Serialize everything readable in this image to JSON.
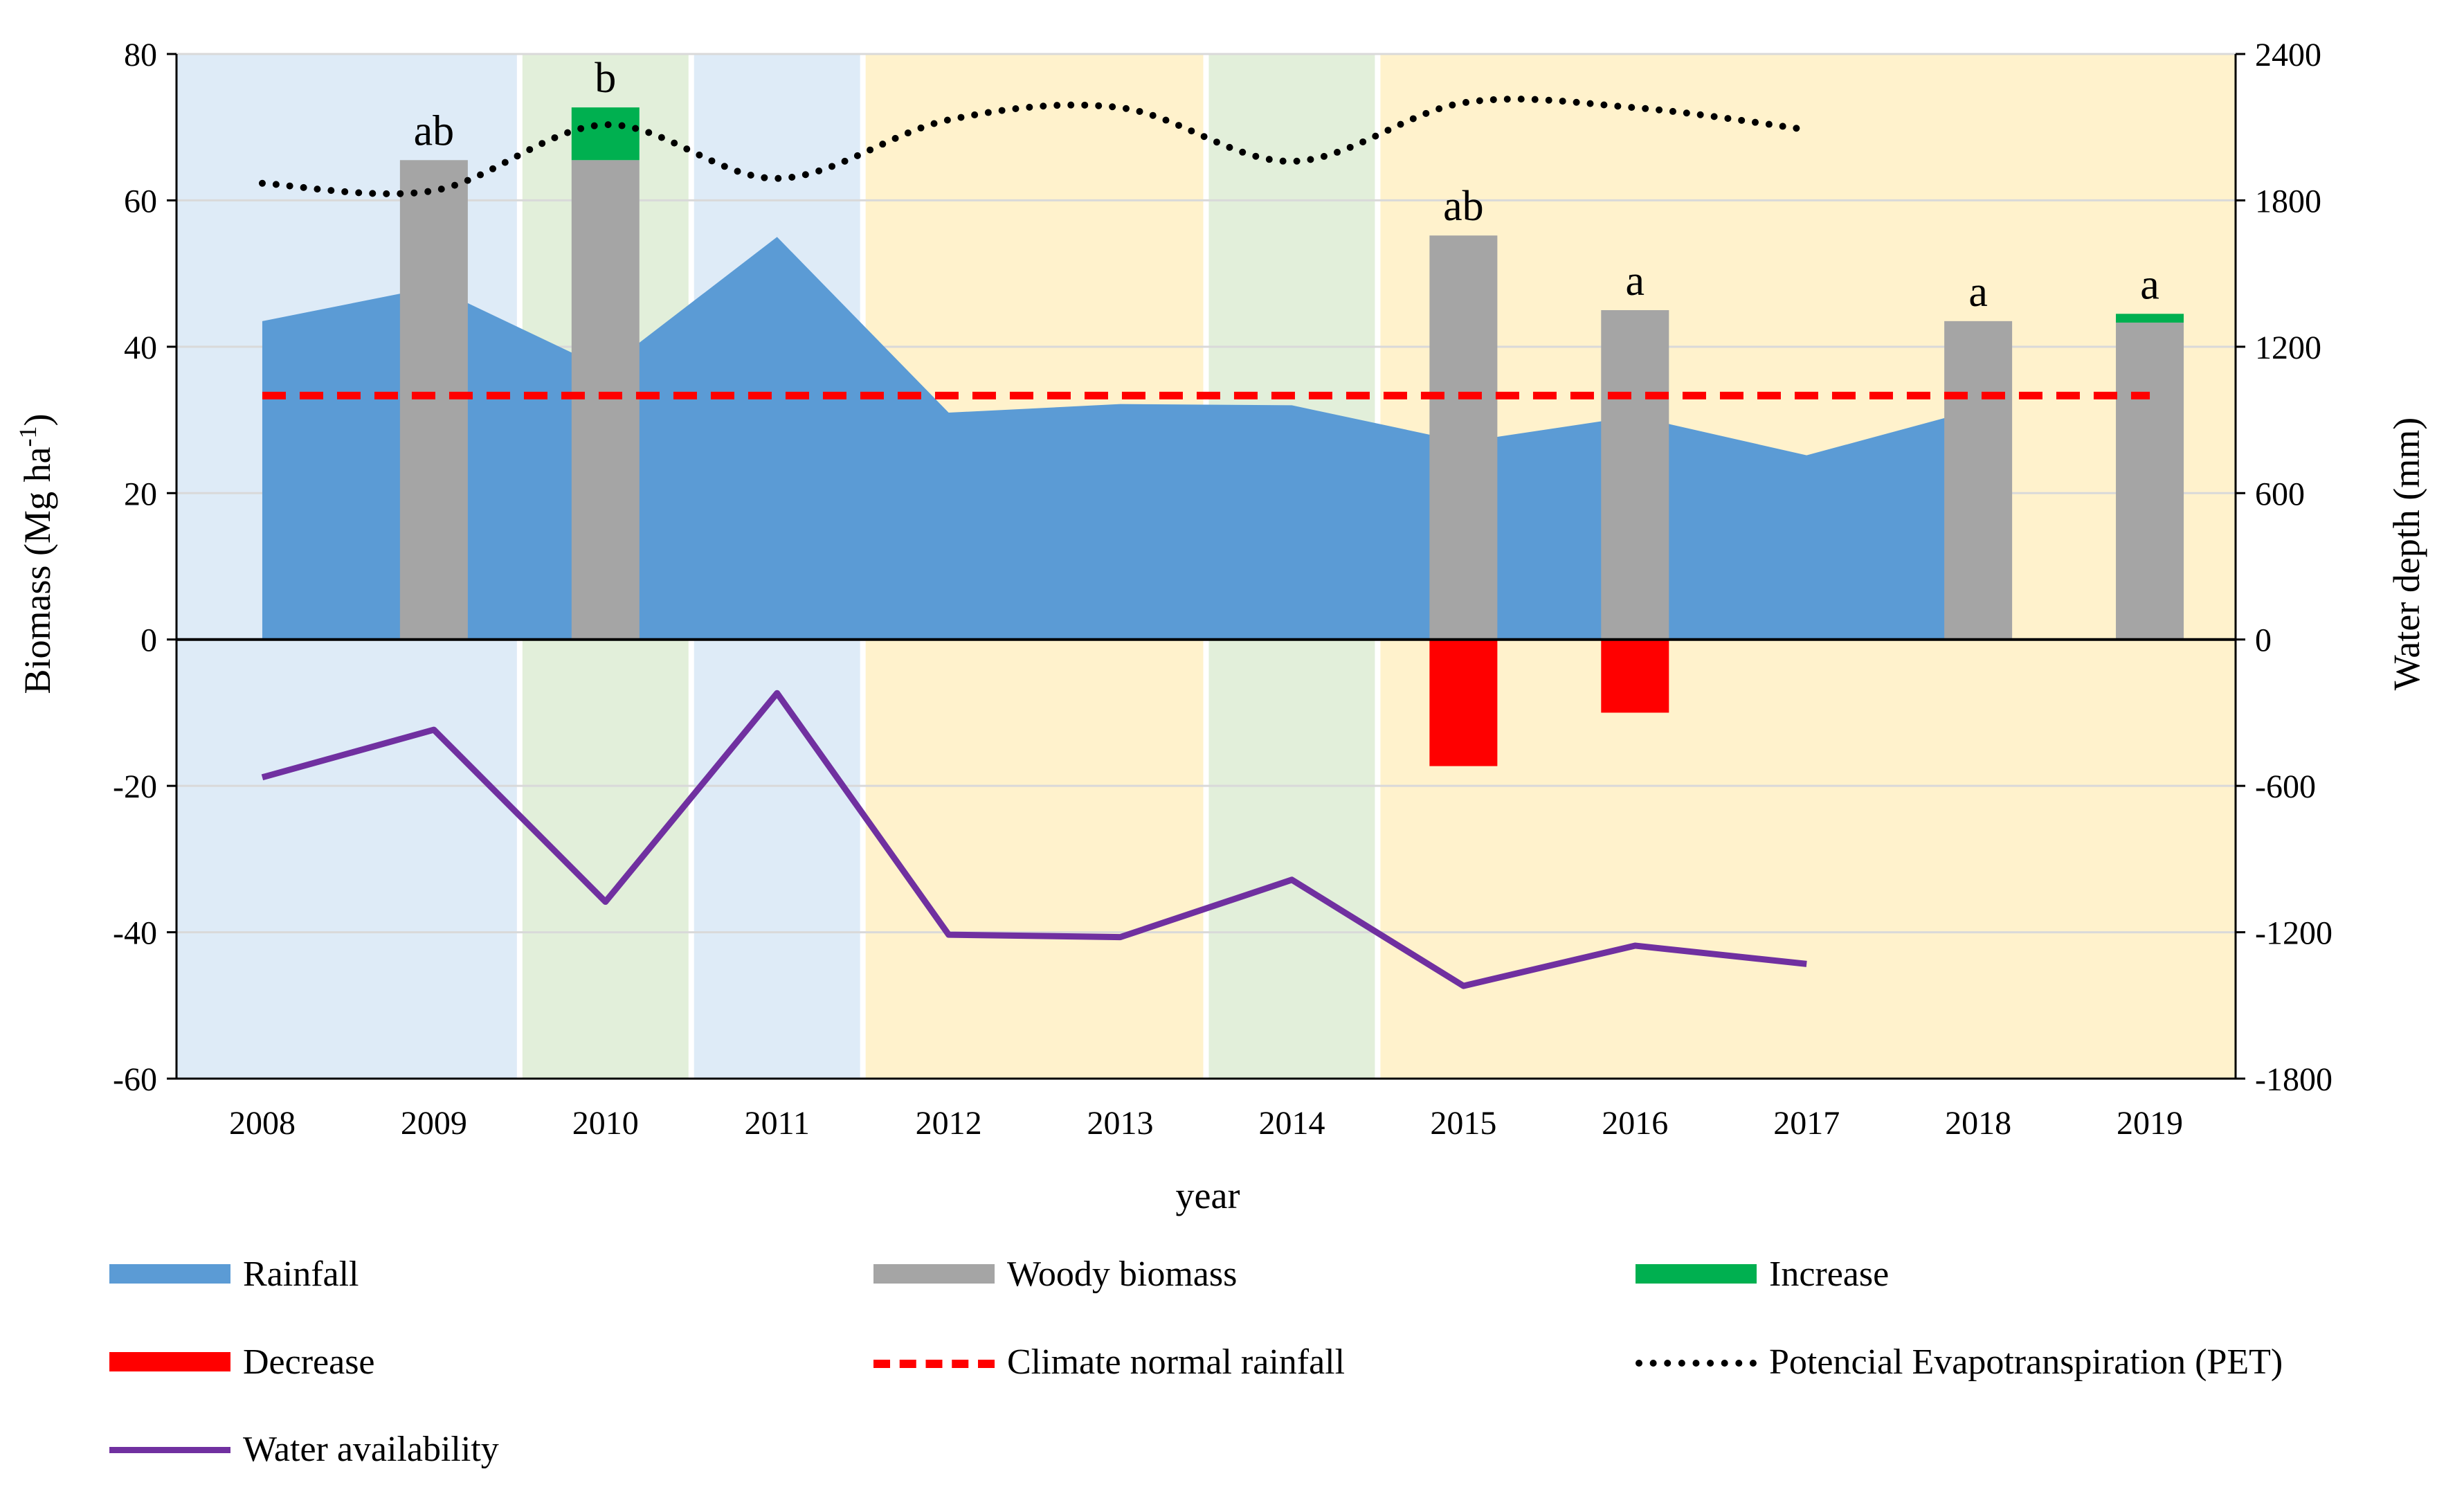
{
  "chart_data": {
    "type": "combo",
    "xlabel": "year",
    "ylabel_left": "Biomass (Mg ha",
    "ylabel_left_sup": "-1",
    "ylabel_left_end": ")",
    "ylabel_right": "Water depth (mm)",
    "categories": [
      "2008",
      "2009",
      "2010",
      "2011",
      "2012",
      "2013",
      "2014",
      "2015",
      "2016",
      "2017",
      "2018",
      "2019"
    ],
    "ylim_left": [
      -60,
      80
    ],
    "yticks_left": [
      -60,
      -40,
      -20,
      0,
      20,
      40,
      60,
      80
    ],
    "ylim_right": [
      -1800,
      2400
    ],
    "yticks_right": [
      -1800,
      -1200,
      -600,
      0,
      600,
      1200,
      1800,
      2400
    ],
    "background_periods": [
      {
        "from": -0.5,
        "to": 1.5,
        "color": "#deebf7"
      },
      {
        "from": 1.5,
        "to": 2.5,
        "color": "#e2efda"
      },
      {
        "from": 2.5,
        "to": 3.5,
        "color": "#deebf7"
      },
      {
        "from": 3.5,
        "to": 5.5,
        "color": "#fff2cc"
      },
      {
        "from": 5.5,
        "to": 6.5,
        "color": "#e2efda"
      },
      {
        "from": 6.5,
        "to": 11.5,
        "color": "#fff2cc"
      }
    ],
    "series": [
      {
        "name": "Rainfall",
        "type": "area",
        "axis": "right",
        "color": "#5b9bd5",
        "values": [
          1305,
          1445,
          1110,
          1650,
          930,
          965,
          960,
          810,
          915,
          755,
          945,
          null
        ]
      },
      {
        "name": "Woody biomass",
        "type": "bar",
        "axis": "left",
        "color": "#a5a5a5",
        "values": [
          null,
          65.5,
          65.5,
          null,
          null,
          null,
          null,
          55.2,
          45,
          null,
          43.5,
          43.3
        ]
      },
      {
        "name": "Increase",
        "type": "bar",
        "axis": "left",
        "color": "#00b050",
        "values": [
          null,
          null,
          7.2,
          null,
          null,
          null,
          null,
          null,
          null,
          null,
          null,
          1.2
        ],
        "base": [
          null,
          null,
          65.5,
          null,
          null,
          null,
          null,
          null,
          null,
          null,
          null,
          43.3
        ]
      },
      {
        "name": "Decrease",
        "type": "bar",
        "axis": "left",
        "color": "#ff0000",
        "values": [
          null,
          null,
          null,
          null,
          null,
          null,
          null,
          -17.3,
          -10,
          null,
          null,
          null
        ]
      },
      {
        "name": "Climate normal rainfall",
        "type": "line",
        "axis": "right",
        "color": "#ff0000",
        "dash": "dashed",
        "values": [
          1000,
          1000,
          1000,
          1000,
          1000,
          1000,
          1000,
          1000,
          1000,
          1000,
          1000,
          1000
        ]
      },
      {
        "name": "Potencial Evapotranspiration (PET)",
        "type": "line",
        "axis": "right",
        "color": "#000000",
        "dash": "dotted",
        "values": [
          1870,
          1840,
          2110,
          1890,
          2130,
          2180,
          1960,
          2200,
          2180,
          2090,
          null,
          null
        ]
      },
      {
        "name": "Water availability",
        "type": "line",
        "axis": "right",
        "color": "#7030a0",
        "dash": "solid",
        "values": [
          -565,
          -370,
          -1075,
          -220,
          -1210,
          -1220,
          -985,
          -1420,
          -1255,
          -1330,
          null,
          null
        ]
      }
    ],
    "significance_labels": [
      "",
      "ab",
      "b",
      "",
      "",
      "",
      "",
      "ab",
      "a",
      "",
      "a",
      "a"
    ],
    "legend": {
      "placement": "bottom",
      "items": [
        {
          "label": "Rainfall",
          "symbol": "rect",
          "color": "#5b9bd5"
        },
        {
          "label": "Woody biomass",
          "symbol": "rect",
          "color": "#a5a5a5"
        },
        {
          "label": "Increase",
          "symbol": "rect",
          "color": "#00b050"
        },
        {
          "label": "Decrease",
          "symbol": "rect",
          "color": "#ff0000"
        },
        {
          "label": "Climate normal rainfall",
          "symbol": "dashed",
          "color": "#ff0000"
        },
        {
          "label": "Potencial Evapotranspiration (PET)",
          "symbol": "dotted",
          "color": "#000000"
        },
        {
          "label": "Water availability",
          "symbol": "line",
          "color": "#7030a0"
        }
      ]
    }
  }
}
